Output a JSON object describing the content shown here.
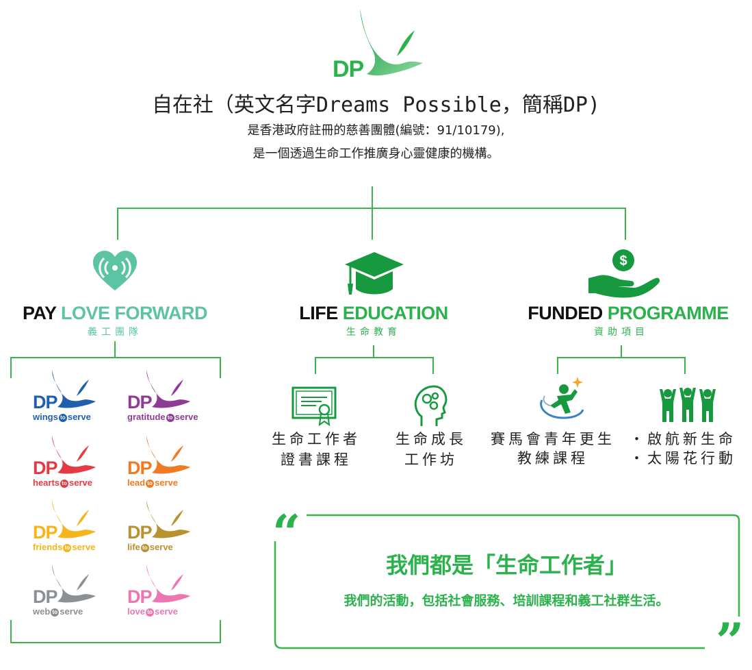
{
  "header": {
    "logo_text": "DP",
    "title": "自在社（英文名字Dreams Possible，簡稱DP)",
    "line1": "是香港政府註冊的慈善團體(編號：91/10179),",
    "line2": "是一個透過生命工作推廣身心靈健康的機構。"
  },
  "colors": {
    "green": "#2bb24c",
    "teal": "#5cc3a3",
    "line": "#39b54a"
  },
  "branches": [
    {
      "icon": "heart-signal-icon",
      "title_dark": "PAY",
      "title_color": "LOVE FORWARD",
      "subtitle": "義工團隊"
    },
    {
      "icon": "graduation-cap-icon",
      "title_dark": "LIFE",
      "title_color": "EDUCATION",
      "subtitle": "生命教育",
      "items": [
        {
          "icon": "certificate-icon",
          "line1": "生命工作者",
          "line2": "證書課程"
        },
        {
          "icon": "head-gears-icon",
          "line1": "生命成長",
          "line2": "工作坊"
        }
      ]
    },
    {
      "icon": "hand-money-icon",
      "title_dark": "FUNDED",
      "title_color": "PROGRAMME",
      "subtitle": "資助項目",
      "items": [
        {
          "icon": "runner-coach-icon",
          "line1": "賽馬會青年更生",
          "line2": "教練課程"
        },
        {
          "icon": "people-cheer-icon",
          "line1": "・啟航新生命",
          "line2": "・太陽花行動"
        }
      ]
    }
  ],
  "logos": [
    {
      "dp": "DP",
      "name": "wings",
      "to": "to",
      "serve": "serve",
      "color": "#1f5fae"
    },
    {
      "dp": "DP",
      "name": "gratitude",
      "to": "to",
      "serve": "serve",
      "color": "#8e3b97"
    },
    {
      "dp": "DP",
      "name": "hearts",
      "to": "to",
      "serve": "serve",
      "color": "#e53a45"
    },
    {
      "dp": "DP",
      "name": "lead",
      "to": "to",
      "serve": "serve",
      "color": "#f07a21"
    },
    {
      "dp": "DP",
      "name": "friends",
      "to": "to",
      "serve": "serve",
      "color": "#f5b51b"
    },
    {
      "dp": "DP",
      "name": "life",
      "to": "to",
      "serve": "serve",
      "color": "#b8922e"
    },
    {
      "dp": "DP",
      "name": "web",
      "to": "to",
      "serve": "serve",
      "color": "#8c9094"
    },
    {
      "dp": "DP",
      "name": "love",
      "to": "to",
      "serve": "serve",
      "color": "#ec76b1"
    }
  ],
  "quote": {
    "open_mark": "“",
    "close_mark": "”",
    "title": "我們都是「生命工作者」",
    "text": "我們的活動，包括社會服務、培訓課程和義工社群生活。"
  }
}
